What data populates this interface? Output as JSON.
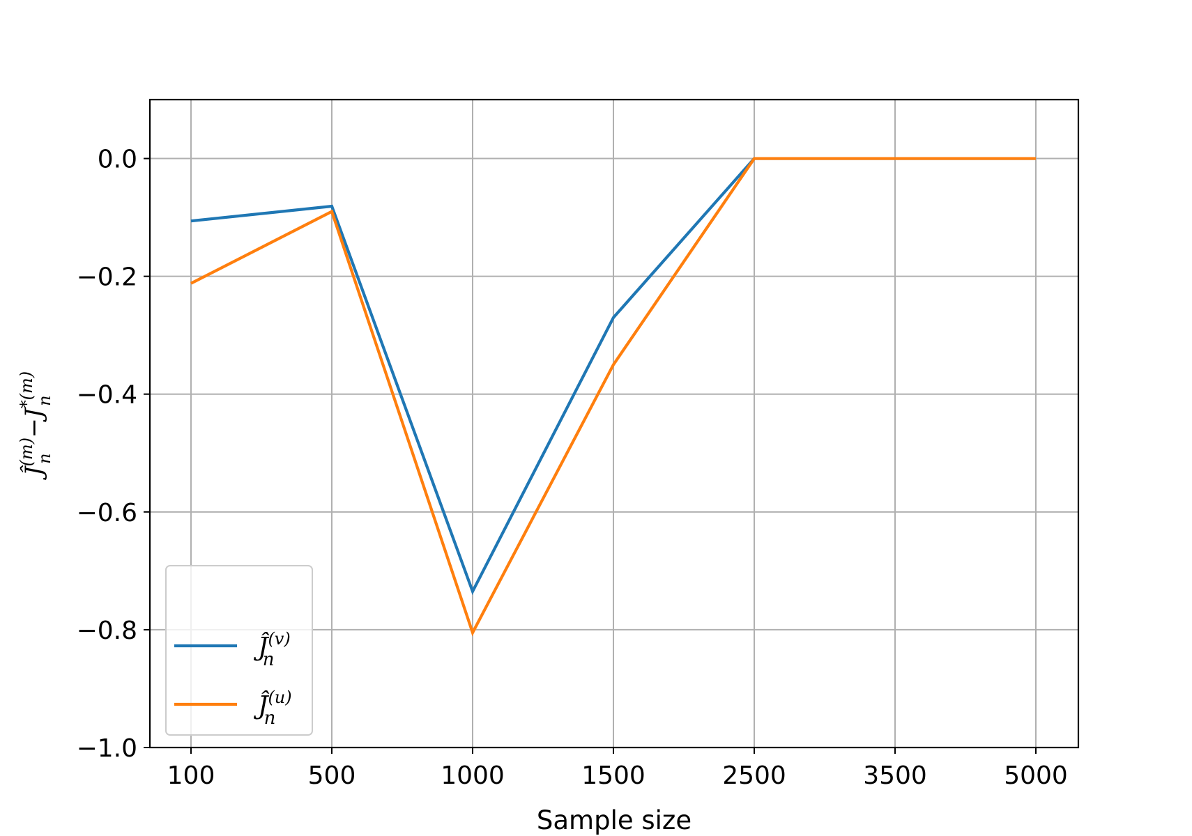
{
  "chart_data": {
    "type": "line",
    "categories": [
      "100",
      "500",
      "1000",
      "1500",
      "2500",
      "3500",
      "5000"
    ],
    "xlabel": "Sample size",
    "ylabel": {
      "main": "Ĵ",
      "sup1": "(m)",
      "sub1": "n",
      "minus": "−",
      "main2": "J",
      "sup2": "*(m)",
      "sub2": "n"
    },
    "ylim": [
      -1.0,
      0.1
    ],
    "yticks": [
      0.0,
      -0.2,
      -0.4,
      -0.6,
      -0.8,
      -1.0
    ],
    "ytick_labels": [
      "0.0",
      "−0.2",
      "−0.4",
      "−0.6",
      "−0.8",
      "−1.0"
    ],
    "grid": true,
    "legend_position": "lower-left",
    "series": [
      {
        "name": "Ĵn(v)",
        "label_main": "Ĵ",
        "label_sub": "n",
        "label_sup": "(v)",
        "color": "#1f77b4",
        "values": [
          -0.106,
          -0.081,
          -0.735,
          -0.27,
          0.0,
          0.0,
          0.0
        ]
      },
      {
        "name": "Ĵn(u)",
        "label_main": "Ĵ",
        "label_sub": "n",
        "label_sup": "(u)",
        "color": "#ff7f0e",
        "values": [
          -0.212,
          -0.09,
          -0.805,
          -0.35,
          0.0,
          0.0,
          0.0
        ]
      }
    ]
  }
}
